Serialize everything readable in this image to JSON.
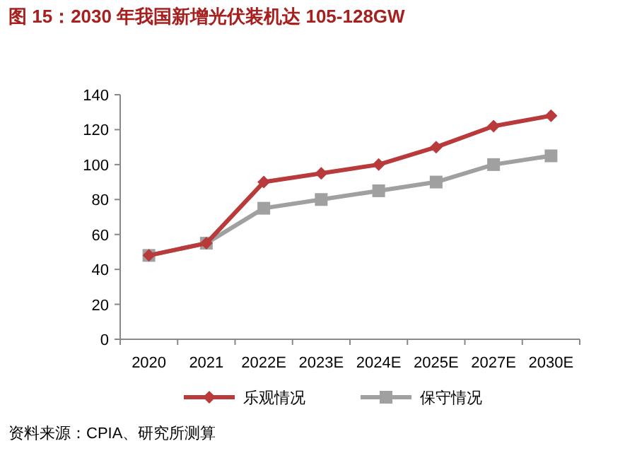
{
  "chart_data": {
    "type": "line",
    "title": "图 15：2030 年我国新增光伏装机达 105-128GW",
    "categories": [
      "2020",
      "2021",
      "2022E",
      "2023E",
      "2024E",
      "2025E",
      "2027E",
      "2030E"
    ],
    "series": [
      {
        "name": "乐观情况",
        "color": "#b83a3a",
        "marker": "diamond",
        "values": [
          48,
          55,
          90,
          95,
          100,
          110,
          122,
          128
        ]
      },
      {
        "name": "保守情况",
        "color": "#a0a0a0",
        "marker": "square",
        "values": [
          48,
          55,
          75,
          80,
          85,
          90,
          100,
          105
        ]
      }
    ],
    "ylim": [
      0,
      140
    ],
    "yticks": [
      0,
      20,
      40,
      60,
      80,
      100,
      120,
      140
    ],
    "grid": false,
    "legend": "bottom",
    "line_style": "solid",
    "annotations": [
      "资料来源：CPIA、研究所测算"
    ]
  }
}
